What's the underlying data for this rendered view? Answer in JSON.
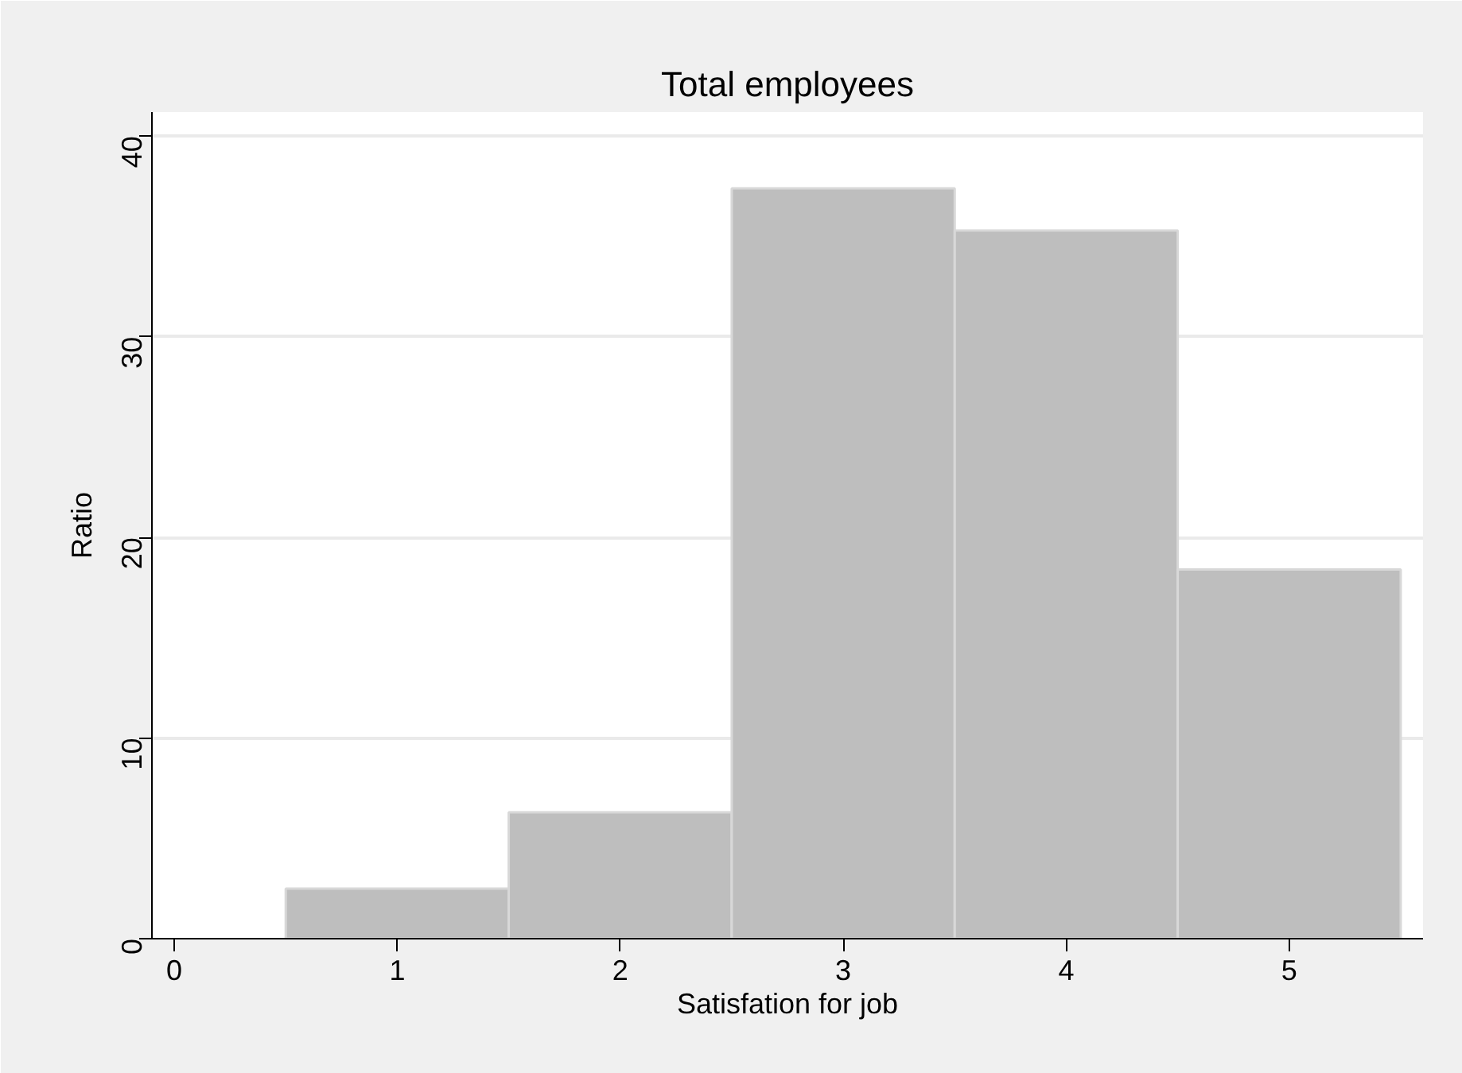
{
  "chart_data": {
    "type": "histogram",
    "title": "Total employees",
    "xlabel": "Satisfation for job",
    "ylabel": "Ratio",
    "bins": [
      0.5,
      1.5,
      2.5,
      3.5,
      4.5,
      5.5
    ],
    "values": [
      2.5,
      6.3,
      37.4,
      35.3,
      18.4
    ],
    "color": "#bebebe",
    "xlim": [
      -0.1,
      5.6
    ],
    "ylim": [
      0,
      41.2
    ],
    "xticks": [
      0,
      1,
      2,
      3,
      4,
      5
    ],
    "yticks": [
      0,
      10,
      20,
      30,
      40
    ],
    "grid": "y"
  }
}
